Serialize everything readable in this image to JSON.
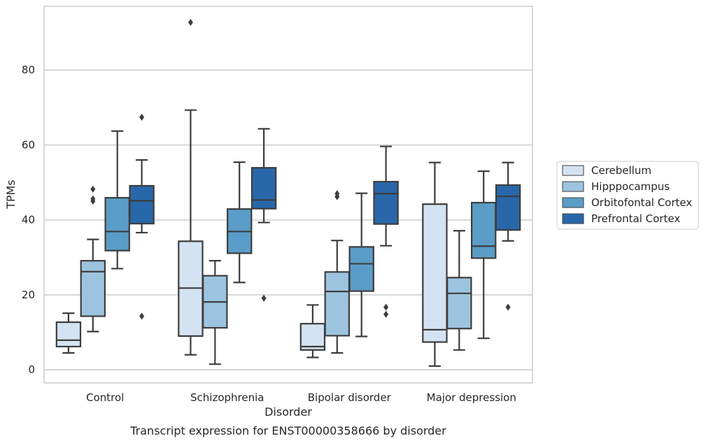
{
  "chart_data": {
    "type": "box",
    "title": "Transcript expression for ENST00000358666 by disorder",
    "xlabel": "Disorder",
    "ylabel": "TPMs",
    "ylim": [
      -3.5,
      97
    ],
    "yticks": [
      0,
      20,
      40,
      60,
      80
    ],
    "grid": true,
    "legend_position": "right",
    "categories": [
      "Control",
      "Schizophrenia",
      "Bipolar disorder",
      "Major depression"
    ],
    "series": [
      {
        "name": "Cerebellum",
        "color": "#d4e3f2",
        "boxes": [
          {
            "whisker_low": 4.5,
            "q1": 6.2,
            "median": 7.9,
            "q3": 12.7,
            "whisker_high": 15.1,
            "outliers": []
          },
          {
            "whisker_low": 4.0,
            "q1": 9.0,
            "median": 21.8,
            "q3": 34.3,
            "whisker_high": 69.3,
            "outliers": [
              92.7
            ]
          },
          {
            "whisker_low": 3.3,
            "q1": 5.3,
            "median": 6.2,
            "q3": 12.3,
            "whisker_high": 17.3,
            "outliers": []
          },
          {
            "whisker_low": 1.0,
            "q1": 7.4,
            "median": 10.7,
            "q3": 44.2,
            "whisker_high": 55.3,
            "outliers": []
          }
        ]
      },
      {
        "name": "Hipppocampus",
        "color": "#9dc4de",
        "boxes": [
          {
            "whisker_low": 10.2,
            "q1": 14.3,
            "median": 26.2,
            "q3": 29.1,
            "whisker_high": 34.8,
            "outliers": [
              45.0,
              45.6,
              48.2
            ]
          },
          {
            "whisker_low": 1.5,
            "q1": 11.2,
            "median": 18.1,
            "q3": 25.1,
            "whisker_high": 29.1,
            "outliers": []
          },
          {
            "whisker_low": 4.5,
            "q1": 9.1,
            "median": 20.9,
            "q3": 26.1,
            "whisker_high": 34.5,
            "outliers": [
              46.2,
              47.0
            ]
          },
          {
            "whisker_low": 5.3,
            "q1": 11.0,
            "median": 20.4,
            "q3": 24.6,
            "whisker_high": 37.1,
            "outliers": []
          }
        ]
      },
      {
        "name": "Orbitofontal Cortex",
        "color": "#5a9dc9",
        "boxes": [
          {
            "whisker_low": 27.0,
            "q1": 31.8,
            "median": 36.9,
            "q3": 45.9,
            "whisker_high": 63.7,
            "outliers": []
          },
          {
            "whisker_low": 23.3,
            "q1": 31.1,
            "median": 36.9,
            "q3": 42.9,
            "whisker_high": 55.4,
            "outliers": []
          },
          {
            "whisker_low": 8.9,
            "q1": 21.0,
            "median": 28.3,
            "q3": 32.8,
            "whisker_high": 47.1,
            "outliers": []
          },
          {
            "whisker_low": 8.4,
            "q1": 29.8,
            "median": 33.0,
            "q3": 44.6,
            "whisker_high": 53.0,
            "outliers": []
          }
        ]
      },
      {
        "name": "Prefrontal Cortex",
        "color": "#2868aa",
        "boxes": [
          {
            "whisker_low": 36.6,
            "q1": 39.0,
            "median": 45.1,
            "q3": 49.1,
            "whisker_high": 56.0,
            "outliers": [
              14.3,
              67.4
            ]
          },
          {
            "whisker_low": 39.3,
            "q1": 43.0,
            "median": 45.3,
            "q3": 53.9,
            "whisker_high": 64.3,
            "outliers": [
              19.1
            ]
          },
          {
            "whisker_low": 33.1,
            "q1": 38.9,
            "median": 47.0,
            "q3": 50.2,
            "whisker_high": 59.6,
            "outliers": [
              14.8,
              16.7
            ]
          },
          {
            "whisker_low": 34.4,
            "q1": 37.3,
            "median": 46.3,
            "q3": 49.3,
            "whisker_high": 55.3,
            "outliers": [
              16.7
            ]
          }
        ]
      }
    ]
  }
}
